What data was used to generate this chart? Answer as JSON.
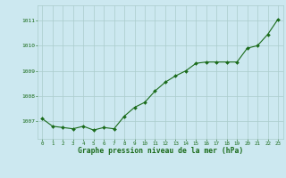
{
  "x": [
    0,
    1,
    2,
    3,
    4,
    5,
    6,
    7,
    8,
    9,
    10,
    11,
    12,
    13,
    14,
    15,
    16,
    17,
    18,
    19,
    20,
    21,
    22,
    23
  ],
  "y": [
    1007.1,
    1006.8,
    1006.75,
    1006.7,
    1006.8,
    1006.65,
    1006.75,
    1006.7,
    1007.2,
    1007.55,
    1007.75,
    1008.2,
    1008.55,
    1008.8,
    1009.0,
    1009.3,
    1009.35,
    1009.35,
    1009.35,
    1009.35,
    1009.9,
    1010.0,
    1010.45,
    1011.05
  ],
  "line_color": "#1a6b1a",
  "marker_color": "#1a6b1a",
  "bg_color": "#cce8f0",
  "grid_color": "#aacccc",
  "xlabel": "Graphe pression niveau de la mer (hPa)",
  "xlabel_color": "#1a6b1a",
  "tick_color": "#1a6b1a",
  "ylim_min": 1006.3,
  "ylim_max": 1011.6,
  "yticks": [
    1007,
    1008,
    1009,
    1010,
    1011
  ],
  "xticks": [
    0,
    1,
    2,
    3,
    4,
    5,
    6,
    7,
    8,
    9,
    10,
    11,
    12,
    13,
    14,
    15,
    16,
    17,
    18,
    19,
    20,
    21,
    22,
    23
  ],
  "figsize": [
    3.2,
    2.0
  ],
  "dpi": 100
}
